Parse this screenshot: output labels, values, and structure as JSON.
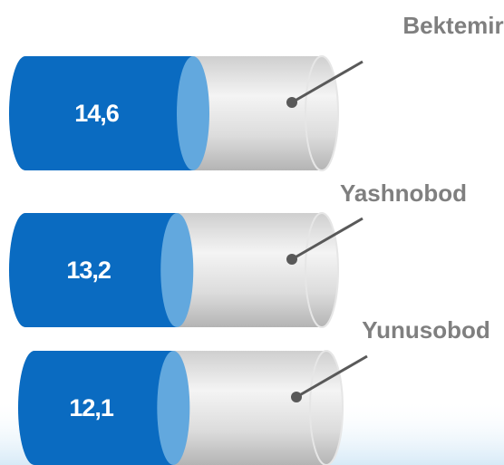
{
  "chart_data": {
    "type": "bar",
    "categories": [
      "Bektemir",
      "Yashnobod",
      "Yunusobod"
    ],
    "values": [
      14.6,
      13.2,
      12.1
    ],
    "value_labels": [
      "14,6",
      "13,2",
      "12,1"
    ],
    "color": "#0a6bc1"
  }
}
